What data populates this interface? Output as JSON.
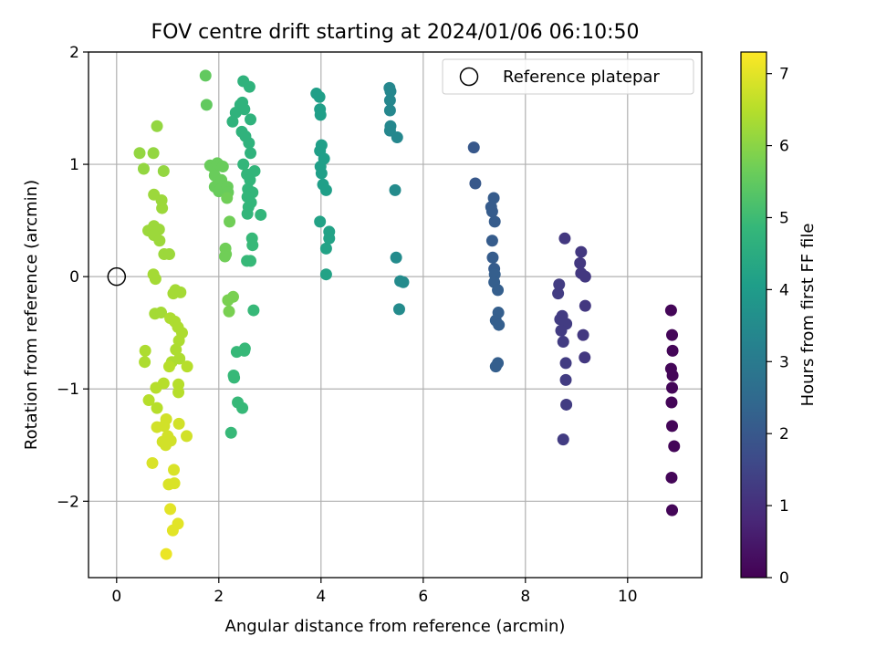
{
  "chart_data": {
    "type": "scatter",
    "title": "FOV centre drift starting at 2024/01/06 06:10:50",
    "xlabel": "Angular distance from reference (arcmin)",
    "ylabel": "Rotation from reference (arcmin)",
    "xlim": [
      -0.55,
      11.45
    ],
    "ylim": [
      -2.68,
      2.0
    ],
    "xticks": [
      0,
      2,
      4,
      6,
      8,
      10
    ],
    "xtick_labels": [
      "0",
      "2",
      "4",
      "6",
      "8",
      "10"
    ],
    "yticks": [
      -2,
      -1,
      0,
      1,
      2
    ],
    "ytick_labels": [
      "−2",
      "−1",
      "0",
      "1",
      "2"
    ],
    "grid": true,
    "colormap": "viridis",
    "colorbar": {
      "label": "Hours from first FF file",
      "range": [
        0,
        7.3
      ],
      "ticks": [
        0,
        1,
        2,
        3,
        4,
        5,
        6,
        7
      ],
      "tick_labels": [
        "0",
        "1",
        "2",
        "3",
        "4",
        "5",
        "6",
        "7"
      ]
    },
    "legend": {
      "position": "top-right",
      "entries": [
        {
          "label": "Reference platepar",
          "marker": "open-circle"
        }
      ]
    },
    "reference_point": {
      "x": 0,
      "y": 0
    },
    "points": [
      {
        "x": 10.85,
        "y": -0.3,
        "h": 0.1
      },
      {
        "x": 10.87,
        "y": -0.52,
        "h": 0.1
      },
      {
        "x": 10.88,
        "y": -0.66,
        "h": 0.1
      },
      {
        "x": 10.85,
        "y": -0.82,
        "h": 0.1
      },
      {
        "x": 10.88,
        "y": -0.88,
        "h": 0.1
      },
      {
        "x": 10.87,
        "y": -0.99,
        "h": 0.1
      },
      {
        "x": 10.86,
        "y": -1.12,
        "h": 0.1
      },
      {
        "x": 10.87,
        "y": -1.33,
        "h": 0.1
      },
      {
        "x": 10.91,
        "y": -1.51,
        "h": 0.1
      },
      {
        "x": 10.86,
        "y": -1.79,
        "h": 0.1
      },
      {
        "x": 10.87,
        "y": -2.08,
        "h": 0.1
      },
      {
        "x": 8.77,
        "y": 0.34,
        "h": 1.2
      },
      {
        "x": 9.09,
        "y": 0.22,
        "h": 1.2
      },
      {
        "x": 9.07,
        "y": 0.12,
        "h": 1.2
      },
      {
        "x": 9.09,
        "y": 0.03,
        "h": 1.2
      },
      {
        "x": 9.17,
        "y": 0.0,
        "h": 1.2
      },
      {
        "x": 8.66,
        "y": -0.07,
        "h": 1.3
      },
      {
        "x": 8.64,
        "y": -0.15,
        "h": 1.3
      },
      {
        "x": 9.17,
        "y": -0.26,
        "h": 1.2
      },
      {
        "x": 8.72,
        "y": -0.35,
        "h": 1.3
      },
      {
        "x": 8.68,
        "y": -0.38,
        "h": 1.3
      },
      {
        "x": 8.8,
        "y": -0.42,
        "h": 1.3
      },
      {
        "x": 8.7,
        "y": -0.48,
        "h": 1.3
      },
      {
        "x": 9.13,
        "y": -0.52,
        "h": 1.2
      },
      {
        "x": 8.74,
        "y": -0.58,
        "h": 1.3
      },
      {
        "x": 9.16,
        "y": -0.72,
        "h": 1.2
      },
      {
        "x": 8.79,
        "y": -0.77,
        "h": 1.3
      },
      {
        "x": 8.79,
        "y": -0.92,
        "h": 1.3
      },
      {
        "x": 8.8,
        "y": -1.14,
        "h": 1.3
      },
      {
        "x": 8.74,
        "y": -1.45,
        "h": 1.3
      },
      {
        "x": 6.99,
        "y": 1.15,
        "h": 2.0
      },
      {
        "x": 7.02,
        "y": 0.83,
        "h": 2.0
      },
      {
        "x": 7.38,
        "y": 0.7,
        "h": 2.1
      },
      {
        "x": 7.33,
        "y": 0.62,
        "h": 2.1
      },
      {
        "x": 7.35,
        "y": 0.58,
        "h": 2.1
      },
      {
        "x": 7.4,
        "y": 0.49,
        "h": 2.1
      },
      {
        "x": 7.35,
        "y": 0.32,
        "h": 2.1
      },
      {
        "x": 7.36,
        "y": 0.17,
        "h": 2.1
      },
      {
        "x": 7.39,
        "y": 0.07,
        "h": 2.1
      },
      {
        "x": 7.4,
        "y": 0.02,
        "h": 2.2
      },
      {
        "x": 7.39,
        "y": -0.05,
        "h": 2.2
      },
      {
        "x": 7.46,
        "y": -0.12,
        "h": 2.2
      },
      {
        "x": 7.47,
        "y": -0.32,
        "h": 2.2
      },
      {
        "x": 7.42,
        "y": -0.39,
        "h": 2.2
      },
      {
        "x": 7.48,
        "y": -0.43,
        "h": 2.2
      },
      {
        "x": 7.46,
        "y": -0.77,
        "h": 2.2
      },
      {
        "x": 7.42,
        "y": -0.8,
        "h": 2.2
      },
      {
        "x": 5.34,
        "y": 1.68,
        "h": 3.4
      },
      {
        "x": 5.36,
        "y": 1.65,
        "h": 3.4
      },
      {
        "x": 5.35,
        "y": 1.57,
        "h": 3.4
      },
      {
        "x": 5.35,
        "y": 1.48,
        "h": 3.4
      },
      {
        "x": 5.36,
        "y": 1.34,
        "h": 3.4
      },
      {
        "x": 5.35,
        "y": 1.3,
        "h": 3.4
      },
      {
        "x": 5.49,
        "y": 1.24,
        "h": 3.4
      },
      {
        "x": 5.45,
        "y": 0.77,
        "h": 3.5
      },
      {
        "x": 5.47,
        "y": 0.17,
        "h": 3.5
      },
      {
        "x": 5.55,
        "y": -0.04,
        "h": 3.5
      },
      {
        "x": 5.61,
        "y": -0.05,
        "h": 3.5
      },
      {
        "x": 5.53,
        "y": -0.29,
        "h": 3.5
      },
      {
        "x": 3.91,
        "y": 1.63,
        "h": 4.1
      },
      {
        "x": 3.97,
        "y": 1.6,
        "h": 4.1
      },
      {
        "x": 3.98,
        "y": 1.49,
        "h": 4.1
      },
      {
        "x": 3.99,
        "y": 1.44,
        "h": 4.1
      },
      {
        "x": 4.01,
        "y": 1.17,
        "h": 4.1
      },
      {
        "x": 3.98,
        "y": 1.12,
        "h": 4.1
      },
      {
        "x": 4.06,
        "y": 1.05,
        "h": 4.1
      },
      {
        "x": 3.99,
        "y": 0.98,
        "h": 4.1
      },
      {
        "x": 4.01,
        "y": 0.92,
        "h": 4.1
      },
      {
        "x": 4.04,
        "y": 0.82,
        "h": 4.1
      },
      {
        "x": 4.1,
        "y": 0.77,
        "h": 4.1
      },
      {
        "x": 3.98,
        "y": 0.49,
        "h": 4.2
      },
      {
        "x": 4.16,
        "y": 0.4,
        "h": 4.2
      },
      {
        "x": 4.16,
        "y": 0.34,
        "h": 4.2
      },
      {
        "x": 4.1,
        "y": 0.25,
        "h": 4.2
      },
      {
        "x": 4.1,
        "y": 0.02,
        "h": 4.2
      },
      {
        "x": 2.48,
        "y": 1.74,
        "h": 4.7
      },
      {
        "x": 2.6,
        "y": 1.69,
        "h": 4.7
      },
      {
        "x": 2.46,
        "y": 1.55,
        "h": 4.7
      },
      {
        "x": 2.42,
        "y": 1.53,
        "h": 4.7
      },
      {
        "x": 2.5,
        "y": 1.49,
        "h": 4.7
      },
      {
        "x": 2.33,
        "y": 1.46,
        "h": 4.7
      },
      {
        "x": 2.62,
        "y": 1.4,
        "h": 4.7
      },
      {
        "x": 2.27,
        "y": 1.38,
        "h": 4.7
      },
      {
        "x": 2.45,
        "y": 1.29,
        "h": 4.7
      },
      {
        "x": 2.52,
        "y": 1.25,
        "h": 4.7
      },
      {
        "x": 2.59,
        "y": 1.19,
        "h": 4.7
      },
      {
        "x": 2.62,
        "y": 1.1,
        "h": 4.7
      },
      {
        "x": 2.48,
        "y": 1.0,
        "h": 4.8
      },
      {
        "x": 2.7,
        "y": 0.94,
        "h": 4.8
      },
      {
        "x": 2.55,
        "y": 0.91,
        "h": 4.8
      },
      {
        "x": 2.61,
        "y": 0.86,
        "h": 4.8
      },
      {
        "x": 2.57,
        "y": 0.78,
        "h": 4.8
      },
      {
        "x": 2.66,
        "y": 0.75,
        "h": 4.8
      },
      {
        "x": 2.56,
        "y": 0.71,
        "h": 4.8
      },
      {
        "x": 2.63,
        "y": 0.66,
        "h": 4.8
      },
      {
        "x": 2.58,
        "y": 0.62,
        "h": 4.8
      },
      {
        "x": 2.56,
        "y": 0.56,
        "h": 4.8
      },
      {
        "x": 2.82,
        "y": 0.55,
        "h": 4.8
      },
      {
        "x": 2.65,
        "y": 0.34,
        "h": 4.9
      },
      {
        "x": 2.66,
        "y": 0.28,
        "h": 4.9
      },
      {
        "x": 2.55,
        "y": 0.14,
        "h": 4.9
      },
      {
        "x": 2.62,
        "y": 0.14,
        "h": 4.9
      },
      {
        "x": 2.68,
        "y": -0.3,
        "h": 4.9
      },
      {
        "x": 2.51,
        "y": -0.64,
        "h": 4.9
      },
      {
        "x": 2.5,
        "y": -0.66,
        "h": 4.9
      },
      {
        "x": 2.35,
        "y": -0.67,
        "h": 4.9
      },
      {
        "x": 2.46,
        "y": -1.17,
        "h": 4.9
      },
      {
        "x": 2.37,
        "y": -1.12,
        "h": 4.9
      },
      {
        "x": 2.24,
        "y": -1.39,
        "h": 4.9
      },
      {
        "x": 2.29,
        "y": -0.88,
        "h": 4.9
      },
      {
        "x": 2.3,
        "y": -0.9,
        "h": 4.9
      },
      {
        "x": 1.74,
        "y": 1.79,
        "h": 5.5
      },
      {
        "x": 1.76,
        "y": 1.53,
        "h": 5.5
      },
      {
        "x": 1.83,
        "y": 0.99,
        "h": 5.6
      },
      {
        "x": 1.9,
        "y": 0.97,
        "h": 5.6
      },
      {
        "x": 1.97,
        "y": 1.01,
        "h": 5.6
      },
      {
        "x": 2.02,
        "y": 0.99,
        "h": 5.6
      },
      {
        "x": 2.08,
        "y": 0.98,
        "h": 5.6
      },
      {
        "x": 1.92,
        "y": 0.9,
        "h": 5.6
      },
      {
        "x": 2.05,
        "y": 0.86,
        "h": 5.6
      },
      {
        "x": 1.92,
        "y": 0.8,
        "h": 5.6
      },
      {
        "x": 2.0,
        "y": 0.76,
        "h": 5.6
      },
      {
        "x": 2.04,
        "y": 0.78,
        "h": 5.6
      },
      {
        "x": 2.17,
        "y": 0.8,
        "h": 5.6
      },
      {
        "x": 2.18,
        "y": 0.75,
        "h": 5.6
      },
      {
        "x": 2.16,
        "y": 0.7,
        "h": 5.7
      },
      {
        "x": 2.21,
        "y": 0.49,
        "h": 5.7
      },
      {
        "x": 2.13,
        "y": 0.25,
        "h": 5.7
      },
      {
        "x": 2.14,
        "y": 0.2,
        "h": 5.7
      },
      {
        "x": 2.12,
        "y": 0.18,
        "h": 5.7
      },
      {
        "x": 2.28,
        "y": -0.18,
        "h": 5.8
      },
      {
        "x": 2.18,
        "y": -0.21,
        "h": 5.8
      },
      {
        "x": 2.2,
        "y": -0.31,
        "h": 5.8
      },
      {
        "x": 0.45,
        "y": 1.1,
        "h": 6.1
      },
      {
        "x": 0.72,
        "y": 1.1,
        "h": 6.1
      },
      {
        "x": 0.79,
        "y": 1.34,
        "h": 6.1
      },
      {
        "x": 0.53,
        "y": 0.96,
        "h": 6.1
      },
      {
        "x": 0.92,
        "y": 0.94,
        "h": 6.1
      },
      {
        "x": 0.73,
        "y": 0.73,
        "h": 6.2
      },
      {
        "x": 0.88,
        "y": 0.68,
        "h": 6.2
      },
      {
        "x": 0.89,
        "y": 0.61,
        "h": 6.2
      },
      {
        "x": 0.73,
        "y": 0.45,
        "h": 6.2
      },
      {
        "x": 0.62,
        "y": 0.41,
        "h": 6.2
      },
      {
        "x": 0.83,
        "y": 0.42,
        "h": 6.2
      },
      {
        "x": 0.73,
        "y": 0.37,
        "h": 6.2
      },
      {
        "x": 0.84,
        "y": 0.32,
        "h": 6.2
      },
      {
        "x": 0.93,
        "y": 0.2,
        "h": 6.2
      },
      {
        "x": 1.03,
        "y": 0.2,
        "h": 6.2
      },
      {
        "x": 0.72,
        "y": 0.02,
        "h": 6.3
      },
      {
        "x": 0.76,
        "y": -0.02,
        "h": 6.3
      },
      {
        "x": 1.11,
        "y": -0.15,
        "h": 6.3
      },
      {
        "x": 1.15,
        "y": -0.12,
        "h": 6.3
      },
      {
        "x": 1.25,
        "y": -0.14,
        "h": 6.3
      },
      {
        "x": 0.75,
        "y": -0.33,
        "h": 6.3
      },
      {
        "x": 0.87,
        "y": -0.32,
        "h": 6.3
      },
      {
        "x": 1.05,
        "y": -0.37,
        "h": 6.4
      },
      {
        "x": 1.14,
        "y": -0.4,
        "h": 6.4
      },
      {
        "x": 1.2,
        "y": -0.45,
        "h": 6.4
      },
      {
        "x": 1.28,
        "y": -0.5,
        "h": 6.4
      },
      {
        "x": 1.22,
        "y": -0.57,
        "h": 6.4
      },
      {
        "x": 1.16,
        "y": -0.65,
        "h": 6.4
      },
      {
        "x": 0.56,
        "y": -0.66,
        "h": 6.4
      },
      {
        "x": 0.55,
        "y": -0.76,
        "h": 6.4
      },
      {
        "x": 1.08,
        "y": -0.76,
        "h": 6.4
      },
      {
        "x": 1.23,
        "y": -0.73,
        "h": 6.4
      },
      {
        "x": 1.38,
        "y": -0.8,
        "h": 6.5
      },
      {
        "x": 1.03,
        "y": -0.8,
        "h": 6.5
      },
      {
        "x": 0.92,
        "y": -0.95,
        "h": 6.5
      },
      {
        "x": 1.21,
        "y": -0.96,
        "h": 6.5
      },
      {
        "x": 0.77,
        "y": -0.99,
        "h": 6.5
      },
      {
        "x": 1.21,
        "y": -1.03,
        "h": 6.5
      },
      {
        "x": 0.63,
        "y": -1.1,
        "h": 6.5
      },
      {
        "x": 0.79,
        "y": -1.17,
        "h": 6.5
      },
      {
        "x": 0.97,
        "y": -1.27,
        "h": 6.8
      },
      {
        "x": 0.93,
        "y": -1.33,
        "h": 6.8
      },
      {
        "x": 0.79,
        "y": -1.34,
        "h": 6.8
      },
      {
        "x": 1.22,
        "y": -1.31,
        "h": 6.8
      },
      {
        "x": 1.37,
        "y": -1.42,
        "h": 6.8
      },
      {
        "x": 1.0,
        "y": -1.42,
        "h": 6.8
      },
      {
        "x": 0.9,
        "y": -1.47,
        "h": 6.8
      },
      {
        "x": 1.06,
        "y": -1.46,
        "h": 6.8
      },
      {
        "x": 0.96,
        "y": -1.5,
        "h": 6.8
      },
      {
        "x": 0.7,
        "y": -1.66,
        "h": 6.9
      },
      {
        "x": 1.12,
        "y": -1.72,
        "h": 6.9
      },
      {
        "x": 1.02,
        "y": -1.85,
        "h": 6.9
      },
      {
        "x": 1.13,
        "y": -1.84,
        "h": 6.9
      },
      {
        "x": 1.05,
        "y": -2.07,
        "h": 7.0
      },
      {
        "x": 1.2,
        "y": -2.2,
        "h": 7.0
      },
      {
        "x": 1.1,
        "y": -2.26,
        "h": 7.0
      },
      {
        "x": 0.97,
        "y": -2.47,
        "h": 7.1
      }
    ]
  }
}
